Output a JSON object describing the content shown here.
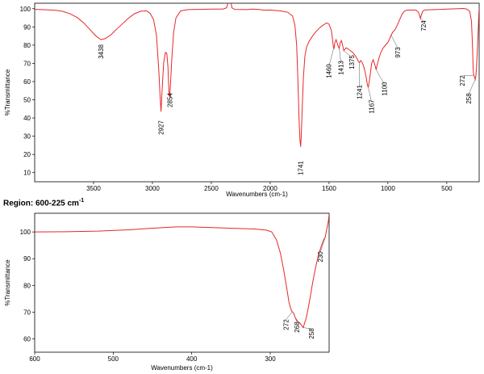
{
  "region_label": {
    "text": "Region: 600-225 cm",
    "exponent": "-1"
  },
  "chart_data": [
    {
      "type": "line",
      "id": "full",
      "xlabel": "Wavenumbers (cm-1)",
      "ylabel": "%Transmittance",
      "xlim": [
        4000,
        225
      ],
      "ylim": [
        5,
        103
      ],
      "xticks": [
        3500,
        3000,
        2500,
        2000,
        1500,
        1000,
        500
      ],
      "yticks": [
        10,
        20,
        30,
        40,
        50,
        60,
        70,
        80,
        90,
        100
      ],
      "grid": false,
      "color": "#e8262a",
      "series": [
        {
          "points": [
            [
              4000,
              99.6
            ],
            [
              3900,
              99.4
            ],
            [
              3820,
              99.1
            ],
            [
              3760,
              98.5
            ],
            [
              3700,
              97.2
            ],
            [
              3640,
              95.2
            ],
            [
              3580,
              92
            ],
            [
              3530,
              88.5
            ],
            [
              3480,
              85
            ],
            [
              3438,
              83
            ],
            [
              3400,
              83.6
            ],
            [
              3350,
              85.8
            ],
            [
              3300,
              89
            ],
            [
              3250,
              92
            ],
            [
              3200,
              95
            ],
            [
              3150,
              97.3
            ],
            [
              3100,
              98.6
            ],
            [
              3050,
              98.8
            ],
            [
              3020,
              97.5
            ],
            [
              2990,
              94
            ],
            [
              2965,
              85
            ],
            [
              2945,
              65
            ],
            [
              2935,
              52
            ],
            [
              2927,
              43.5
            ],
            [
              2918,
              55
            ],
            [
              2905,
              70
            ],
            [
              2890,
              76
            ],
            [
              2878,
              75.5
            ],
            [
              2868,
              68
            ],
            [
              2860,
              54
            ],
            [
              2854,
              51.5
            ],
            [
              2848,
              57
            ],
            [
              2835,
              73
            ],
            [
              2820,
              87
            ],
            [
              2800,
              95
            ],
            [
              2760,
              98.8
            ],
            [
              2700,
              99.5
            ],
            [
              2600,
              99.6
            ],
            [
              2500,
              99.8
            ],
            [
              2400,
              99.8
            ],
            [
              2370,
              100.5
            ],
            [
              2355,
              104
            ],
            [
              2335,
              104
            ],
            [
              2325,
              100.5
            ],
            [
              2300,
              99.6
            ],
            [
              2200,
              99.5
            ],
            [
              2150,
              99.8
            ],
            [
              2100,
              99.6
            ],
            [
              2050,
              99.2
            ],
            [
              2000,
              99.3
            ],
            [
              1950,
              99.0
            ],
            [
              1900,
              98.7
            ],
            [
              1850,
              98.0
            ],
            [
              1810,
              96
            ],
            [
              1790,
              91
            ],
            [
              1775,
              80
            ],
            [
              1765,
              62
            ],
            [
              1755,
              40
            ],
            [
              1747,
              28
            ],
            [
              1741,
              24.2
            ],
            [
              1736,
              30
            ],
            [
              1728,
              45
            ],
            [
              1718,
              62
            ],
            [
              1705,
              74
            ],
            [
              1690,
              79
            ],
            [
              1670,
              82
            ],
            [
              1640,
              85
            ],
            [
              1610,
              87.5
            ],
            [
              1580,
              89.5
            ],
            [
              1550,
              91
            ],
            [
              1520,
              92.2
            ],
            [
              1500,
              91.5
            ],
            [
              1480,
              88
            ],
            [
              1470,
              83
            ],
            [
              1463,
              79
            ],
            [
              1458,
              78
            ],
            [
              1450,
              81.5
            ],
            [
              1440,
              83
            ],
            [
              1430,
              81
            ],
            [
              1420,
              79
            ],
            [
              1413,
              78.2
            ],
            [
              1405,
              81.5
            ],
            [
              1395,
              82.5
            ],
            [
              1385,
              80
            ],
            [
              1375,
              77
            ],
            [
              1368,
              77.5
            ],
            [
              1355,
              78.5
            ],
            [
              1340,
              78
            ],
            [
              1320,
              77
            ],
            [
              1300,
              76
            ],
            [
              1280,
              74.5
            ],
            [
              1262,
              72.5
            ],
            [
              1250,
              71
            ],
            [
              1241,
              70.5
            ],
            [
              1230,
              71.5
            ],
            [
              1215,
              70
            ],
            [
              1200,
              67
            ],
            [
              1185,
              62.5
            ],
            [
              1175,
              58.5
            ],
            [
              1167,
              56.8
            ],
            [
              1158,
              60
            ],
            [
              1148,
              65
            ],
            [
              1138,
              70
            ],
            [
              1125,
              72
            ],
            [
              1110,
              69
            ],
            [
              1100,
              66.5
            ],
            [
              1090,
              69.5
            ],
            [
              1075,
              73
            ],
            [
              1060,
              76
            ],
            [
              1040,
              78.5
            ],
            [
              1020,
              80
            ],
            [
              1000,
              81.5
            ],
            [
              985,
              83.5
            ],
            [
              973,
              85.5
            ],
            [
              960,
              87
            ],
            [
              940,
              88.5
            ],
            [
              920,
              91
            ],
            [
              900,
              94
            ],
            [
              880,
              97
            ],
            [
              860,
              98.6
            ],
            [
              840,
              99.2
            ],
            [
              800,
              99.3
            ],
            [
              760,
              99.2
            ],
            [
              740,
              98
            ],
            [
              730,
              96
            ],
            [
              724,
              94.6
            ],
            [
              716,
              96.5
            ],
            [
              705,
              98.5
            ],
            [
              690,
              99.3
            ],
            [
              650,
              99.4
            ],
            [
              600,
              99.5
            ],
            [
              550,
              99.6
            ],
            [
              500,
              99.8
            ],
            [
              450,
              99.9
            ],
            [
              400,
              100
            ],
            [
              360,
              100.1
            ],
            [
              330,
              99.8
            ],
            [
              305,
              98.5
            ],
            [
              290,
              93
            ],
            [
              282,
              80
            ],
            [
              276,
              67
            ],
            [
              272,
              63.5
            ],
            [
              266,
              63
            ],
            [
              262,
              62
            ],
            [
              258,
              61.2
            ],
            [
              254,
              62.5
            ],
            [
              248,
              67
            ],
            [
              240,
              78
            ],
            [
              232,
              90
            ],
            [
              228,
              97
            ],
            [
              225,
              100
            ]
          ]
        }
      ],
      "peak_labels": [
        "3438",
        "2927",
        "2854",
        "1741",
        "1460",
        "1413",
        "1375",
        "1241",
        "1167",
        "1100",
        "973",
        "724",
        "272",
        "258"
      ],
      "peaks": [
        3438,
        2927,
        2854,
        1741,
        1460,
        1413,
        1375,
        1241,
        1167,
        1100,
        973,
        724,
        272,
        258
      ]
    },
    {
      "type": "line",
      "id": "region",
      "xlabel": "Wavenumbers (cm-1)",
      "ylabel": "%Transmittance",
      "xlim": [
        600,
        225
      ],
      "ylim": [
        55,
        107
      ],
      "xticks": [
        600,
        500,
        400,
        300
      ],
      "yticks": [
        60,
        70,
        80,
        90,
        100
      ],
      "grid": false,
      "color": "#e8262a",
      "series": [
        {
          "points": [
            [
              600,
              100
            ],
            [
              560,
              100.1
            ],
            [
              520,
              100.3
            ],
            [
              480,
              100.8
            ],
            [
              450,
              101.4
            ],
            [
              420,
              101.9
            ],
            [
              400,
              101.9
            ],
            [
              370,
              101.6
            ],
            [
              340,
              101.3
            ],
            [
              320,
              101.1
            ],
            [
              305,
              100.7
            ],
            [
              298,
              100
            ],
            [
              292,
              97
            ],
            [
              287,
              92
            ],
            [
              283,
              86
            ],
            [
              279,
              79
            ],
            [
              276,
              73.5
            ],
            [
              273,
              70.5
            ],
            [
              270,
              69.5
            ],
            [
              268,
              67.8
            ],
            [
              265,
              66.5
            ],
            [
              262,
              65.8
            ],
            [
              258,
              64.2
            ],
            [
              254,
              68
            ],
            [
              250,
              74
            ],
            [
              246,
              81
            ],
            [
              242,
              87
            ],
            [
              238,
              92
            ],
            [
              234,
              95.5
            ],
            [
              232,
              97
            ],
            [
              230,
              98
            ],
            [
              228,
              101
            ],
            [
              226,
              104
            ],
            [
              225,
              106.5
            ]
          ]
        }
      ],
      "peak_labels": [
        "272",
        "268",
        "258",
        "230"
      ],
      "peaks": [
        272,
        268,
        258,
        230
      ]
    }
  ]
}
